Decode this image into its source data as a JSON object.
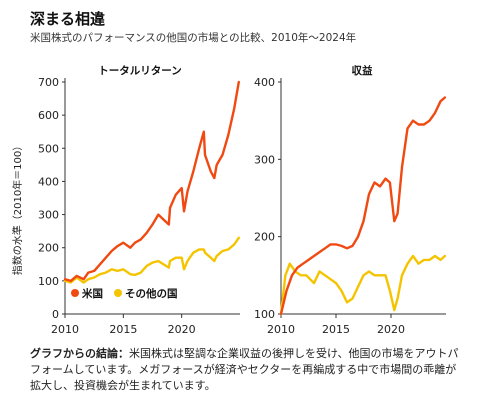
{
  "title": "深まる相違",
  "subtitle": "米国株式のパフォーマンスの他国の市場との比較、2010年～2024年",
  "colors": {
    "us": "#f04a12",
    "other": "#f5c400",
    "axis": "#333333"
  },
  "chart_data": [
    {
      "type": "line",
      "title": "トータルリターン",
      "ylabel": "指数の水準（2010年＝100）",
      "ylim": [
        0,
        700
      ],
      "y_ticks": [
        0,
        100,
        200,
        300,
        400,
        500,
        600,
        700
      ],
      "xlim": [
        2010,
        2025
      ],
      "x_ticks": [
        2010,
        2015,
        2020
      ],
      "legend_position": "bottom-left",
      "series": [
        {
          "name": "米国",
          "key": "us",
          "x": [
            2010,
            2010.5,
            2011,
            2011.6,
            2012,
            2012.5,
            2013,
            2013.5,
            2014,
            2014.5,
            2015,
            2015.6,
            2016,
            2016.5,
            2017,
            2017.5,
            2018,
            2018.9,
            2019,
            2019.5,
            2020,
            2020.2,
            2020.5,
            2021,
            2021.5,
            2021.9,
            2022,
            2022.5,
            2022.8,
            2023,
            2023.5,
            2024,
            2024.5,
            2024.9
          ],
          "values": [
            105,
            100,
            115,
            105,
            125,
            130,
            150,
            170,
            190,
            205,
            215,
            200,
            215,
            225,
            245,
            270,
            300,
            270,
            320,
            360,
            380,
            310,
            370,
            430,
            500,
            550,
            480,
            430,
            410,
            450,
            480,
            540,
            620,
            700
          ]
        },
        {
          "name": "その他の国",
          "key": "other",
          "x": [
            2010,
            2010.5,
            2011,
            2011.6,
            2012,
            2012.5,
            2013,
            2013.5,
            2014,
            2014.5,
            2015,
            2015.6,
            2016,
            2016.5,
            2017,
            2017.5,
            2018,
            2018.9,
            2019,
            2019.5,
            2020,
            2020.2,
            2020.5,
            2021,
            2021.5,
            2021.9,
            2022,
            2022.5,
            2022.8,
            2023,
            2023.5,
            2024,
            2024.5,
            2024.9
          ],
          "values": [
            100,
            95,
            110,
            95,
            105,
            110,
            120,
            125,
            135,
            130,
            135,
            120,
            118,
            125,
            145,
            155,
            160,
            140,
            160,
            170,
            170,
            135,
            160,
            185,
            195,
            195,
            185,
            170,
            160,
            175,
            190,
            195,
            210,
            230
          ]
        }
      ]
    },
    {
      "type": "line",
      "title": "収益",
      "ylim": [
        100,
        400
      ],
      "y_ticks": [
        100,
        200,
        300,
        400
      ],
      "xlim": [
        2010,
        2025
      ],
      "x_ticks": [
        2010,
        2015,
        2020
      ],
      "series": [
        {
          "name": "米国",
          "key": "us",
          "x": [
            2010,
            2010.5,
            2011,
            2011.5,
            2012,
            2012.5,
            2013,
            2013.5,
            2014,
            2014.5,
            2015,
            2015.5,
            2016,
            2016.5,
            2017,
            2017.5,
            2018,
            2018.5,
            2019,
            2019.5,
            2019.9,
            2020.3,
            2020.6,
            2021,
            2021.5,
            2022,
            2022.5,
            2023,
            2023.5,
            2024,
            2024.5,
            2024.9
          ],
          "values": [
            100,
            130,
            150,
            160,
            165,
            170,
            175,
            180,
            185,
            190,
            190,
            188,
            185,
            188,
            200,
            220,
            255,
            270,
            265,
            275,
            270,
            220,
            230,
            290,
            340,
            350,
            345,
            345,
            350,
            360,
            375,
            380
          ]
        },
        {
          "name": "その他の国",
          "key": "other",
          "x": [
            2010,
            2010.4,
            2010.8,
            2011.3,
            2011.8,
            2012.3,
            2013,
            2013.5,
            2014,
            2014.5,
            2015,
            2015.5,
            2016,
            2016.5,
            2017,
            2017.5,
            2018,
            2018.5,
            2019,
            2019.5,
            2019.9,
            2020.3,
            2020.6,
            2021,
            2021.5,
            2022,
            2022.5,
            2023,
            2023.5,
            2024,
            2024.5,
            2024.9
          ],
          "values": [
            100,
            150,
            165,
            155,
            150,
            150,
            140,
            155,
            150,
            145,
            140,
            130,
            115,
            120,
            135,
            150,
            155,
            150,
            150,
            150,
            130,
            105,
            120,
            150,
            165,
            175,
            165,
            170,
            170,
            175,
            170,
            175
          ]
        }
      ]
    }
  ],
  "note": {
    "label": "グラフからの結論：",
    "text": "米国株式は堅調な企業収益の後押しを受け、他国の市場をアウトパフォームしています。メガフォースが経済やセクターを再編成する中で市場間の乖離が拡大し、投資機会が生まれています。"
  }
}
